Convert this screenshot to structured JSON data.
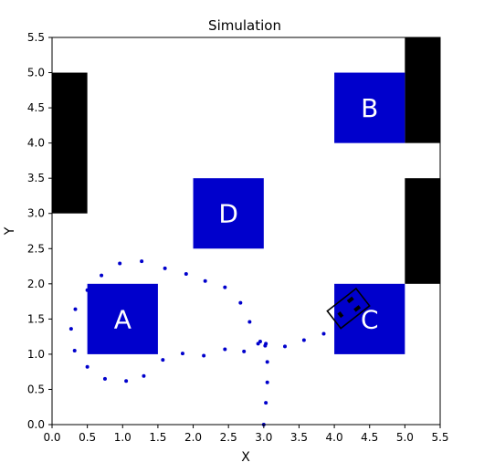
{
  "chart_data": {
    "type": "scatter",
    "title": "Simulation",
    "xlabel": "X",
    "ylabel": "Y",
    "xlim": [
      0,
      5.5
    ],
    "ylim": [
      0,
      5.5
    ],
    "xticks": [
      "0.0",
      "0.5",
      "1.0",
      "1.5",
      "2.0",
      "2.5",
      "3.0",
      "3.5",
      "4.0",
      "4.5",
      "5.0",
      "5.5"
    ],
    "yticks": [
      "0.0",
      "0.5",
      "1.0",
      "1.5",
      "2.0",
      "2.5",
      "3.0",
      "3.5",
      "4.0",
      "4.5",
      "5.0",
      "5.5"
    ],
    "grid": false,
    "obstacles": [
      {
        "x": [
          0.0,
          0.5
        ],
        "y": [
          3.0,
          5.0
        ],
        "color": "#000000"
      },
      {
        "x": [
          5.0,
          5.5
        ],
        "y": [
          4.0,
          5.5
        ],
        "color": "#000000"
      },
      {
        "x": [
          5.0,
          5.5
        ],
        "y": [
          2.0,
          3.5
        ],
        "color": "#000000"
      }
    ],
    "zones": [
      {
        "label": "A",
        "x": [
          0.5,
          1.5
        ],
        "y": [
          1.0,
          2.0
        ],
        "color": "#0000cc"
      },
      {
        "label": "B",
        "x": [
          4.0,
          5.0
        ],
        "y": [
          4.0,
          5.0
        ],
        "color": "#0000cc"
      },
      {
        "label": "C",
        "x": [
          4.0,
          5.0
        ],
        "y": [
          1.0,
          2.0
        ],
        "color": "#0000cc"
      },
      {
        "label": "D",
        "x": [
          2.0,
          3.0
        ],
        "y": [
          2.5,
          3.5
        ],
        "color": "#0000cc"
      }
    ],
    "trajectory": {
      "color": "#0000cc",
      "x": [
        3.0,
        3.03,
        3.05,
        3.05,
        3.02,
        2.95,
        2.72,
        2.45,
        2.15,
        1.85,
        1.57,
        1.3,
        1.05,
        0.75,
        0.5,
        0.32,
        0.27,
        0.33,
        0.5,
        0.7,
        0.96,
        1.27,
        1.6,
        1.9,
        2.17,
        2.45,
        2.67,
        2.8,
        2.92,
        3.03,
        3.3,
        3.57,
        3.85,
        4.08
      ],
      "y": [
        0.0,
        0.31,
        0.6,
        0.89,
        1.12,
        1.18,
        1.04,
        1.07,
        0.98,
        1.01,
        0.92,
        0.69,
        0.62,
        0.65,
        0.82,
        1.05,
        1.36,
        1.64,
        1.91,
        2.12,
        2.29,
        2.32,
        2.22,
        2.14,
        2.04,
        1.95,
        1.73,
        1.46,
        1.15,
        1.15,
        1.11,
        1.2,
        1.29,
        1.45
      ]
    },
    "robot": {
      "x": 4.2,
      "y": 1.65,
      "heading_deg": 38,
      "color": "#000000"
    }
  }
}
